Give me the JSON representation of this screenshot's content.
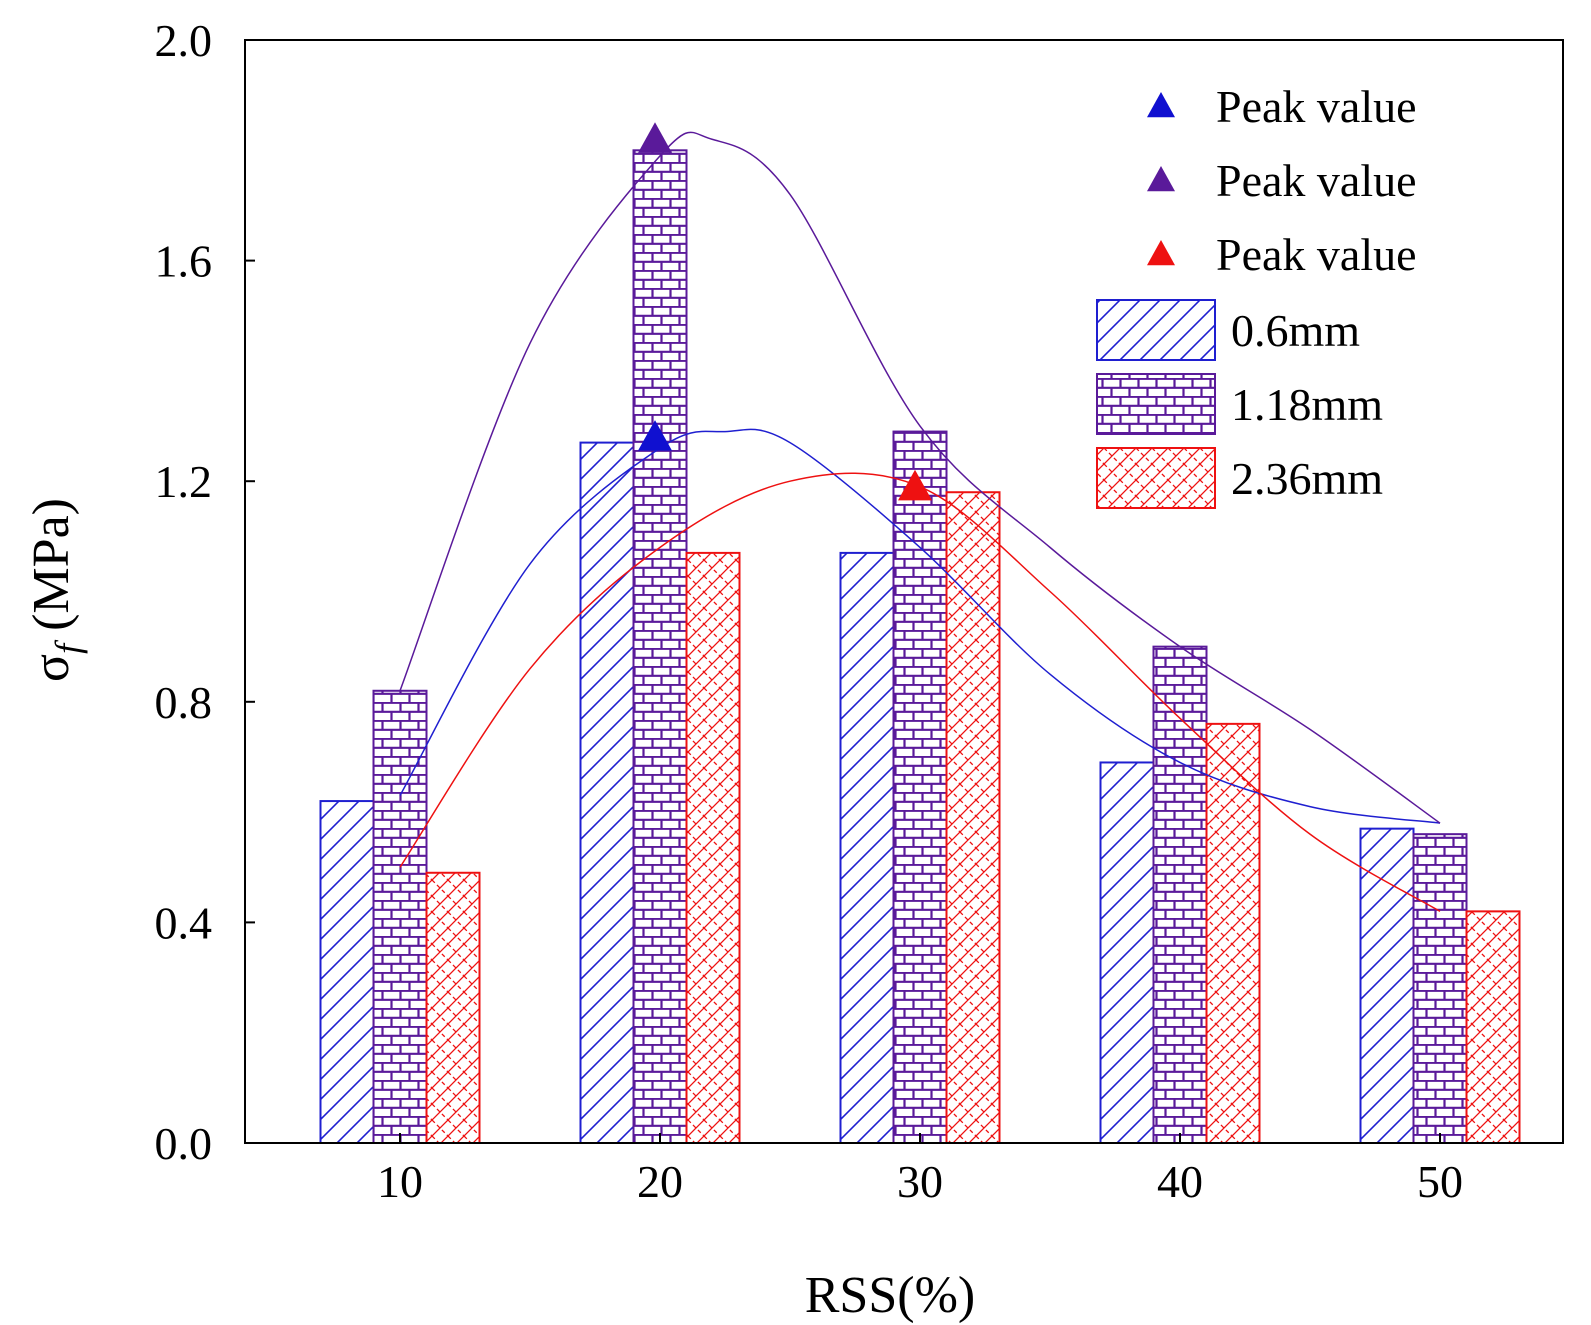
{
  "chart_data": {
    "type": "bar",
    "title": "",
    "xlabel": "RSS(%)",
    "ylabel": {
      "symbol": "σ",
      "subscript": "f",
      "unit": " (MPa)"
    },
    "categories": [
      "10",
      "20",
      "30",
      "40",
      "50"
    ],
    "ylim": [
      0.0,
      2.0
    ],
    "yticks": [
      "0.0",
      "0.4",
      "0.8",
      "1.2",
      "1.6",
      "2.0"
    ],
    "ytick_values": [
      0.0,
      0.4,
      0.8,
      1.2,
      1.6,
      2.0
    ],
    "grid": false,
    "legend_position": "top-right",
    "series": [
      {
        "name": "0.6mm",
        "values": [
          0.62,
          1.27,
          1.07,
          0.69,
          0.57
        ],
        "color": "#1f1fd0",
        "pattern": "diagonal-hatch"
      },
      {
        "name": "1.18mm",
        "values": [
          0.82,
          1.8,
          1.29,
          0.9,
          0.56
        ],
        "color": "#5a1a9a",
        "pattern": "brick"
      },
      {
        "name": "2.36mm",
        "values": [
          0.49,
          1.07,
          1.18,
          0.76,
          0.42
        ],
        "color": "#ee1111",
        "pattern": "crosshatch"
      }
    ],
    "fit_curves": [
      {
        "series": "0.6mm",
        "color": "#1f1fd0",
        "x": [
          10,
          15,
          20,
          22.5,
          25,
          30,
          35,
          40,
          45,
          50
        ],
        "y": [
          0.63,
          1.05,
          1.26,
          1.29,
          1.27,
          1.08,
          0.85,
          0.69,
          0.61,
          0.58
        ]
      },
      {
        "series": "1.18mm",
        "color": "#5a1a9a",
        "x": [
          10,
          15,
          20,
          22,
          25,
          30,
          35,
          40,
          45,
          50
        ],
        "y": [
          0.82,
          1.45,
          1.79,
          1.82,
          1.72,
          1.3,
          1.08,
          0.9,
          0.75,
          0.58
        ]
      },
      {
        "series": "2.36mm",
        "color": "#ee1111",
        "x": [
          10,
          15,
          20,
          25,
          30,
          35,
          40,
          45,
          50
        ],
        "y": [
          0.5,
          0.86,
          1.08,
          1.2,
          1.19,
          1.0,
          0.77,
          0.56,
          0.42
        ]
      }
    ],
    "peaks": [
      {
        "label": "Peak value",
        "series": "0.6mm",
        "x": 20,
        "y": 1.28,
        "color": "#1010d0"
      },
      {
        "label": "Peak value",
        "series": "1.18mm",
        "x": 20,
        "y": 1.82,
        "color": "#5a1a9a"
      },
      {
        "label": "Peak value",
        "series": "2.36mm",
        "x": 30,
        "y": 1.19,
        "color": "#ee1111"
      }
    ]
  }
}
